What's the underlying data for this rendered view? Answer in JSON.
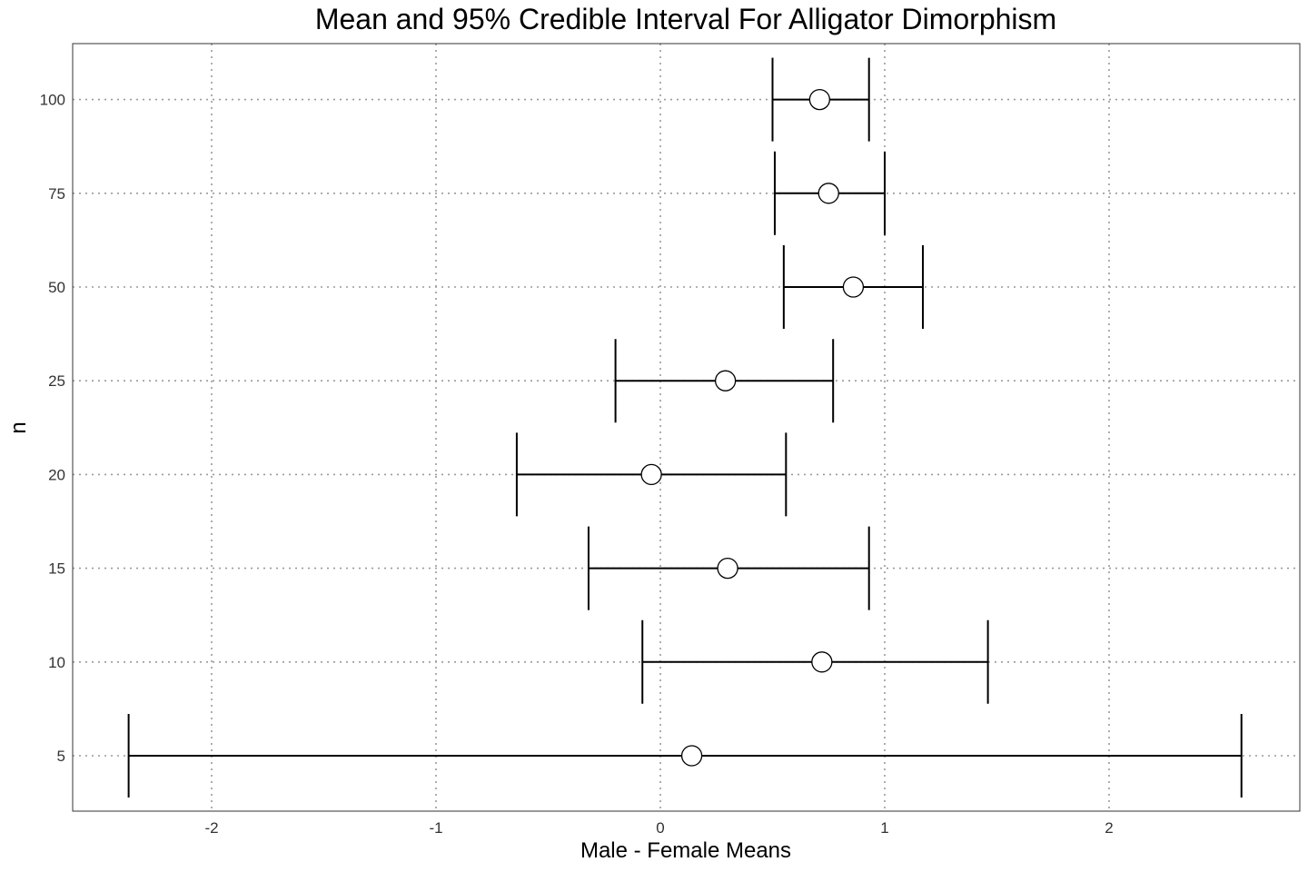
{
  "chart_data": {
    "type": "scatter",
    "subtype": "point-with-error-bars",
    "title": "Mean and 95% Credible Interval For Alligator Dimorphism",
    "xlabel": "Male - Female Means",
    "ylabel": "n",
    "xlim": [
      -2.6,
      2.7
    ],
    "x_ticks": [
      -2,
      -1,
      0,
      1,
      2
    ],
    "x_tick_labels": [
      "-2",
      "-1",
      "0",
      "1",
      "2"
    ],
    "categories": [
      "5",
      "10",
      "15",
      "20",
      "25",
      "50",
      "75",
      "100"
    ],
    "points": [
      {
        "n": "5",
        "mean": 0.14,
        "lower": -2.37,
        "upper": 2.59
      },
      {
        "n": "10",
        "mean": 0.72,
        "lower": -0.08,
        "upper": 1.46
      },
      {
        "n": "15",
        "mean": 0.3,
        "lower": -0.32,
        "upper": 0.93
      },
      {
        "n": "20",
        "mean": -0.04,
        "lower": -0.64,
        "upper": 0.56
      },
      {
        "n": "25",
        "mean": 0.29,
        "lower": -0.2,
        "upper": 0.77
      },
      {
        "n": "50",
        "mean": 0.86,
        "lower": 0.55,
        "upper": 1.17
      },
      {
        "n": "75",
        "mean": 0.75,
        "lower": 0.51,
        "upper": 1.0
      },
      {
        "n": "100",
        "mean": 0.71,
        "lower": 0.5,
        "upper": 0.93
      }
    ],
    "grid": true,
    "legend": "none"
  }
}
